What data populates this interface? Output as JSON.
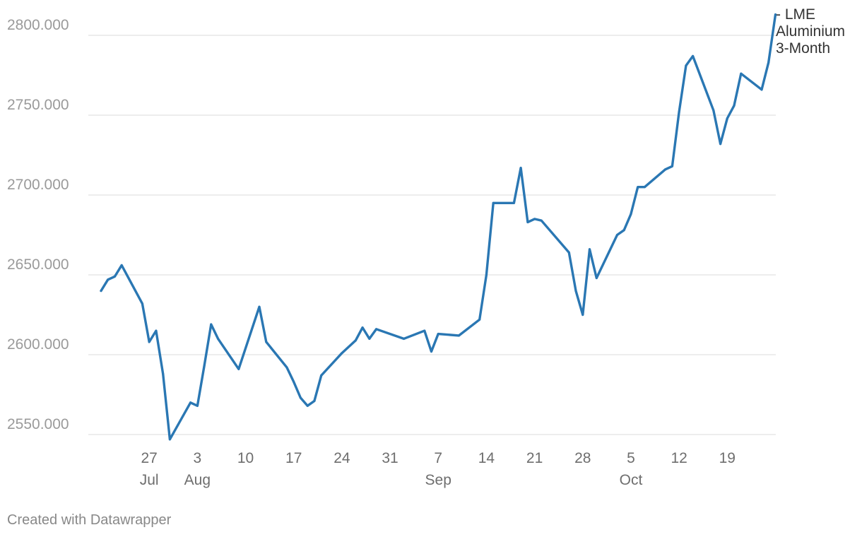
{
  "chart_data": {
    "type": "line",
    "title": "",
    "xlabel": "",
    "ylabel": "",
    "ylim": [
      2545,
      2815
    ],
    "y_ticks": [
      2550,
      2600,
      2650,
      2700,
      2750,
      2800
    ],
    "y_tick_labels": [
      "2550.000",
      "2600.000",
      "2650.000",
      "2700.000",
      "2750.000",
      "2800.000"
    ],
    "x_range": [
      "2018-07-20",
      "2018-10-24"
    ],
    "x_ticks": [
      {
        "date": "2018-07-27",
        "day": "27",
        "month": "Jul"
      },
      {
        "date": "2018-08-03",
        "day": "3",
        "month": "Aug"
      },
      {
        "date": "2018-08-10",
        "day": "10",
        "month": ""
      },
      {
        "date": "2018-08-17",
        "day": "17",
        "month": ""
      },
      {
        "date": "2018-08-24",
        "day": "24",
        "month": ""
      },
      {
        "date": "2018-08-31",
        "day": "31",
        "month": ""
      },
      {
        "date": "2018-09-07",
        "day": "7",
        "month": "Sep"
      },
      {
        "date": "2018-09-14",
        "day": "14",
        "month": ""
      },
      {
        "date": "2018-09-21",
        "day": "21",
        "month": ""
      },
      {
        "date": "2018-09-28",
        "day": "28",
        "month": ""
      },
      {
        "date": "2018-10-05",
        "day": "5",
        "month": "Oct"
      },
      {
        "date": "2018-10-12",
        "day": "12",
        "month": ""
      },
      {
        "date": "2018-10-19",
        "day": "19",
        "month": ""
      }
    ],
    "grid": true,
    "legend": "right",
    "series": [
      {
        "name": " - LME Aluminium 3-Month",
        "color": "#2a77b3",
        "points": [
          [
            "2018-07-20",
            2640
          ],
          [
            "2018-07-21",
            2647
          ],
          [
            "2018-07-22",
            2649
          ],
          [
            "2018-07-23",
            2656
          ],
          [
            "2018-07-26",
            2632
          ],
          [
            "2018-07-27",
            2608
          ],
          [
            "2018-07-28",
            2615
          ],
          [
            "2018-07-29",
            2588
          ],
          [
            "2018-07-30",
            2547
          ],
          [
            "2018-08-02",
            2570
          ],
          [
            "2018-08-03",
            2568
          ],
          [
            "2018-08-04",
            2593
          ],
          [
            "2018-08-05",
            2619
          ],
          [
            "2018-08-06",
            2610
          ],
          [
            "2018-08-09",
            2591
          ],
          [
            "2018-08-12",
            2630
          ],
          [
            "2018-08-13",
            2608
          ],
          [
            "2018-08-16",
            2592
          ],
          [
            "2018-08-17",
            2583
          ],
          [
            "2018-08-18",
            2573
          ],
          [
            "2018-08-19",
            2568
          ],
          [
            "2018-08-20",
            2571
          ],
          [
            "2018-08-21",
            2587
          ],
          [
            "2018-08-24",
            2601
          ],
          [
            "2018-08-26",
            2609
          ],
          [
            "2018-08-27",
            2617
          ],
          [
            "2018-08-28",
            2610
          ],
          [
            "2018-08-29",
            2616
          ],
          [
            "2018-09-02",
            2610
          ],
          [
            "2018-09-05",
            2615
          ],
          [
            "2018-09-06",
            2602
          ],
          [
            "2018-09-07",
            2613
          ],
          [
            "2018-09-10",
            2612
          ],
          [
            "2018-09-13",
            2622
          ],
          [
            "2018-09-14",
            2650
          ],
          [
            "2018-09-15",
            2695
          ],
          [
            "2018-09-18",
            2695
          ],
          [
            "2018-09-19",
            2717
          ],
          [
            "2018-09-20",
            2683
          ],
          [
            "2018-09-21",
            2685
          ],
          [
            "2018-09-22",
            2684
          ],
          [
            "2018-09-26",
            2664
          ],
          [
            "2018-09-27",
            2640
          ],
          [
            "2018-09-28",
            2625
          ],
          [
            "2018-09-29",
            2666
          ],
          [
            "2018-09-30",
            2648
          ],
          [
            "2018-10-03",
            2675
          ],
          [
            "2018-10-04",
            2678
          ],
          [
            "2018-10-05",
            2688
          ],
          [
            "2018-10-06",
            2705
          ],
          [
            "2018-10-07",
            2705
          ],
          [
            "2018-10-10",
            2716
          ],
          [
            "2018-10-11",
            2718
          ],
          [
            "2018-10-12",
            2752
          ],
          [
            "2018-10-13",
            2781
          ],
          [
            "2018-10-14",
            2787
          ],
          [
            "2018-10-17",
            2753
          ],
          [
            "2018-10-18",
            2732
          ],
          [
            "2018-10-19",
            2748
          ],
          [
            "2018-10-20",
            2756
          ],
          [
            "2018-10-21",
            2776
          ],
          [
            "2018-10-24",
            2766
          ],
          [
            "2018-10-25",
            2783
          ],
          [
            "2018-10-26",
            2813
          ]
        ]
      }
    ]
  },
  "legend": {
    "label_lines": [
      " - LME",
      "Aluminium",
      "3-Month"
    ]
  },
  "footer": {
    "credit": "Created with Datawrapper"
  }
}
